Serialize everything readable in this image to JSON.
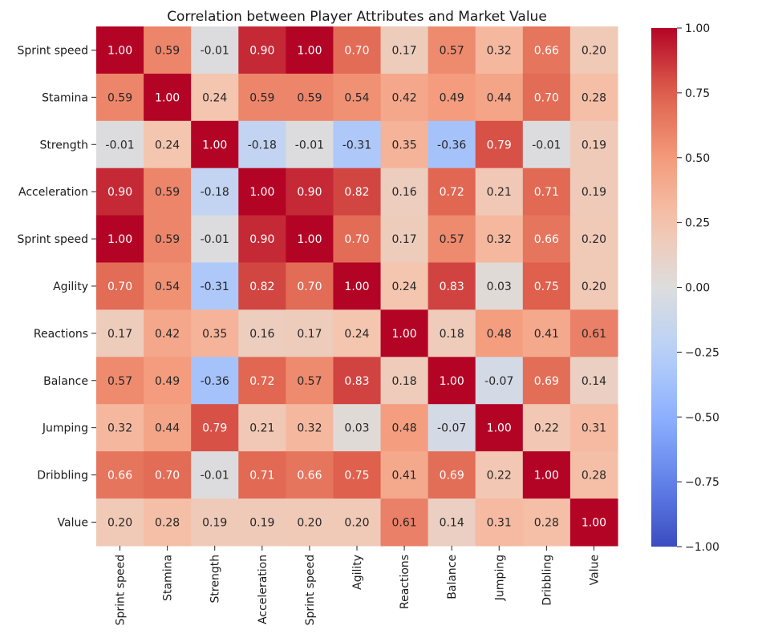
{
  "chart_data": {
    "type": "heatmap",
    "title": "Correlation between Player Attributes and Market Value",
    "xlabel": "",
    "ylabel": "",
    "row_labels": [
      "Sprint speed",
      "Stamina",
      "Strength",
      "Acceleration",
      "Sprint speed",
      "Agility",
      "Reactions",
      "Balance",
      "Jumping",
      "Dribbling",
      "Value"
    ],
    "col_labels": [
      "Sprint speed",
      "Stamina",
      "Strength",
      "Acceleration",
      "Sprint speed",
      "Agility",
      "Reactions",
      "Balance",
      "Jumping",
      "Dribbling",
      "Value"
    ],
    "values": [
      [
        1.0,
        0.59,
        -0.01,
        0.9,
        1.0,
        0.7,
        0.17,
        0.57,
        0.32,
        0.66,
        0.2
      ],
      [
        0.59,
        1.0,
        0.24,
        0.59,
        0.59,
        0.54,
        0.42,
        0.49,
        0.44,
        0.7,
        0.28
      ],
      [
        -0.01,
        0.24,
        1.0,
        -0.18,
        -0.01,
        -0.31,
        0.35,
        -0.36,
        0.79,
        -0.01,
        0.19
      ],
      [
        0.9,
        0.59,
        -0.18,
        1.0,
        0.9,
        0.82,
        0.16,
        0.72,
        0.21,
        0.71,
        0.19
      ],
      [
        1.0,
        0.59,
        -0.01,
        0.9,
        1.0,
        0.7,
        0.17,
        0.57,
        0.32,
        0.66,
        0.2
      ],
      [
        0.7,
        0.54,
        -0.31,
        0.82,
        0.7,
        1.0,
        0.24,
        0.83,
        0.03,
        0.75,
        0.2
      ],
      [
        0.17,
        0.42,
        0.35,
        0.16,
        0.17,
        0.24,
        1.0,
        0.18,
        0.48,
        0.41,
        0.61
      ],
      [
        0.57,
        0.49,
        -0.36,
        0.72,
        0.57,
        0.83,
        0.18,
        1.0,
        -0.07,
        0.69,
        0.14
      ],
      [
        0.32,
        0.44,
        0.79,
        0.21,
        0.32,
        0.03,
        0.48,
        -0.07,
        1.0,
        0.22,
        0.31
      ],
      [
        0.66,
        0.7,
        -0.01,
        0.71,
        0.66,
        0.75,
        0.41,
        0.69,
        0.22,
        1.0,
        0.28
      ],
      [
        0.2,
        0.28,
        0.19,
        0.19,
        0.2,
        0.2,
        0.61,
        0.14,
        0.31,
        0.28,
        1.0
      ]
    ],
    "value_format": "0.00",
    "colormap": "coolwarm",
    "vmin": -1.0,
    "vmax": 1.0,
    "colorbar_ticks": [
      1.0,
      0.75,
      0.5,
      0.25,
      0.0,
      -0.25,
      -0.5,
      -0.75,
      -1.0
    ],
    "colorbar_tick_labels": [
      "1.00",
      "0.75",
      "0.50",
      "0.25",
      "0.00",
      "−0.25",
      "−0.50",
      "−0.75",
      "−1.00"
    ],
    "grid": false,
    "legend": "colorbar-right"
  }
}
